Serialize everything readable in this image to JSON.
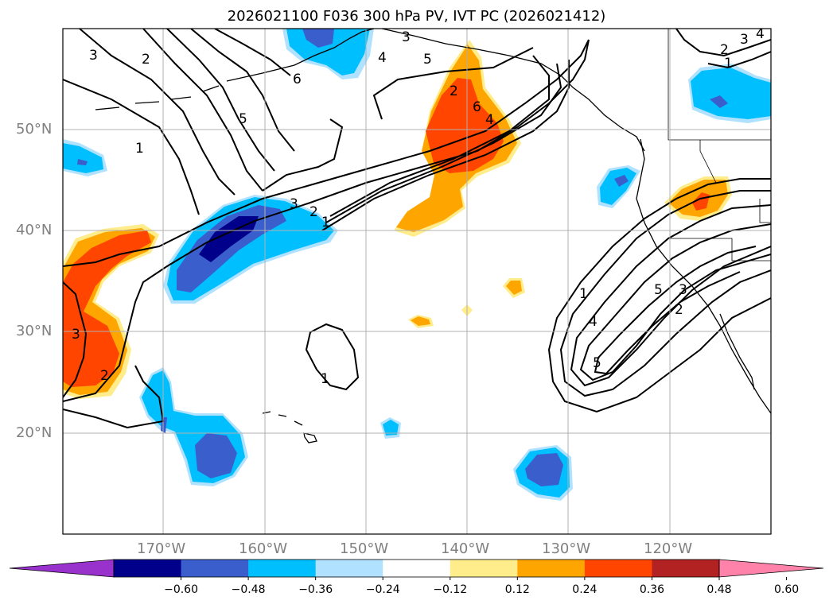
{
  "title": "2026021100 F036 300 hPa PV, IVT PC (2026021412)",
  "lat_labels": [
    "50°N",
    "40°N",
    "30°N",
    "20°N"
  ],
  "lon_labels": [
    "170°W",
    "160°W",
    "150°W",
    "140°W",
    "130°W",
    "120°W"
  ],
  "colorbar": {
    "ticks": [
      "−0.60",
      "−0.48",
      "−0.36",
      "−0.24",
      "−0.12",
      "0.12",
      "0.24",
      "0.36",
      "0.48",
      "0.60"
    ],
    "colors": [
      "#9932cc",
      "#00008b",
      "#3a5fcd",
      "#00bfff",
      "#b0e2ff",
      "#ffffff",
      "#ffec8b",
      "#ffa500",
      "#ff4500",
      "#b22222",
      "#ff82ab"
    ]
  },
  "contour_labels": [
    "3",
    "2",
    "5",
    "6",
    "3",
    "4",
    "5",
    "1",
    "2",
    "6",
    "4",
    "3",
    "2",
    "1",
    "1",
    "2",
    "3",
    "1",
    "5",
    "4",
    "5",
    "2",
    "3",
    "1",
    "2",
    "3",
    "4"
  ],
  "colors": {
    "negative_dark": "#00008b",
    "negative_mid": "#3a5fcd",
    "negative_light": "#00bfff",
    "negative_pale": "#b0e2ff",
    "positive_pale": "#ffec8b",
    "positive_light": "#ffa500",
    "positive_mid": "#ff4500"
  }
}
